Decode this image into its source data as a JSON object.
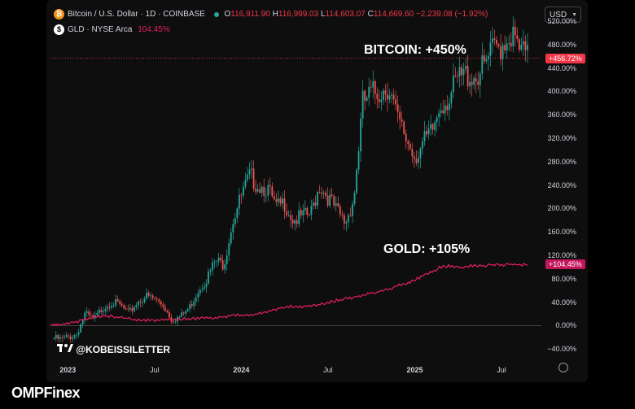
{
  "header": {
    "btc_title": "Bitcoin / U.S. Dollar · 1D · COINBASE",
    "ohlc": {
      "o_label": "O",
      "o_value": "116,911.90",
      "h_label": "H",
      "h_value": "116,999.03",
      "l_label": "L",
      "l_value": "114,603.07",
      "c_label": "C",
      "c_value": "114,669.60",
      "change": "−2,239.08 (−1.92%)"
    },
    "gld_title": "GLD · NYSE Arca",
    "gld_value": "104.45%",
    "currency": "USD"
  },
  "annotations": {
    "bitcoin": "BITCOIN: +450%",
    "gold": "GOLD: +105%"
  },
  "price_tags": {
    "btc": "+456.72%",
    "gld": "+104.45%"
  },
  "watermark": "@KOBEISSILETTER",
  "brand": "OMPFinex",
  "colors": {
    "up": "#26a69a",
    "down": "#ef5350",
    "gold_line": "#e91e63",
    "btc_tag": "#f23645",
    "gld_tag": "#c2185b",
    "background": "#0e0e0f"
  },
  "icons": [
    "bitcoin-icon",
    "gld-icon",
    "settings-icon",
    "tradingview-logo-icon"
  ],
  "chart_data": {
    "type": "line",
    "y_unit": "percent change",
    "y_ticks": [
      "520.00%",
      "480.00%",
      "440.00%",
      "400.00%",
      "360.00%",
      "320.00%",
      "280.00%",
      "240.00%",
      "200.00%",
      "160.00%",
      "120.00%",
      "80.00%",
      "40.00%",
      "0.00%",
      "−40.00%"
    ],
    "y_tick_values": [
      520,
      480,
      440,
      400,
      360,
      320,
      280,
      240,
      200,
      160,
      120,
      80,
      40,
      0,
      -40
    ],
    "ylim": [
      -55,
      545
    ],
    "x_ticks": [
      {
        "label": "2023",
        "t": 0.0,
        "bold": true
      },
      {
        "label": "Jul",
        "t": 0.5,
        "bold": false
      },
      {
        "label": "2024",
        "t": 1.0,
        "bold": true
      },
      {
        "label": "Jul",
        "t": 1.5,
        "bold": false
      },
      {
        "label": "2025",
        "t": 2.0,
        "bold": true
      },
      {
        "label": "Jul",
        "t": 2.5,
        "bold": false
      }
    ],
    "xlim": [
      -0.1,
      2.73
    ],
    "series": [
      {
        "name": "Bitcoin / U.S. Dollar",
        "style": "candles",
        "t": [
          -0.08,
          -0.04,
          0.0,
          0.05,
          0.1,
          0.15,
          0.2,
          0.25,
          0.3,
          0.35,
          0.4,
          0.45,
          0.5,
          0.55,
          0.6,
          0.65,
          0.7,
          0.75,
          0.8,
          0.85,
          0.9,
          0.95,
          1.0,
          1.05,
          1.1,
          1.15,
          1.2,
          1.25,
          1.3,
          1.35,
          1.4,
          1.45,
          1.5,
          1.55,
          1.6,
          1.65,
          1.7,
          1.75,
          1.8,
          1.85,
          1.9,
          1.95,
          2.0,
          2.05,
          2.1,
          2.15,
          2.2,
          2.25,
          2.3,
          2.35,
          2.4,
          2.45,
          2.5,
          2.55,
          2.6,
          2.65
        ],
        "values": [
          -22,
          -24,
          -20,
          -15,
          20,
          10,
          30,
          40,
          35,
          20,
          40,
          50,
          45,
          35,
          10,
          15,
          30,
          60,
          80,
          110,
          105,
          180,
          220,
          255,
          240,
          235,
          200,
          210,
          180,
          185,
          190,
          240,
          220,
          195,
          175,
          220,
          380,
          395,
          400,
          410,
          350,
          320,
          290,
          310,
          330,
          380,
          390,
          420,
          430,
          425,
          440,
          470,
          480,
          500,
          470,
          456.72
        ]
      },
      {
        "name": "GLD",
        "style": "line",
        "t": [
          -0.1,
          0.0,
          0.05,
          0.1,
          0.15,
          0.2,
          0.25,
          0.3,
          0.35,
          0.4,
          0.45,
          0.5,
          0.55,
          0.6,
          0.65,
          0.7,
          0.75,
          0.8,
          0.85,
          0.9,
          0.95,
          1.0,
          1.05,
          1.1,
          1.15,
          1.2,
          1.25,
          1.3,
          1.35,
          1.4,
          1.45,
          1.5,
          1.55,
          1.6,
          1.65,
          1.7,
          1.75,
          1.8,
          1.85,
          1.9,
          1.95,
          2.0,
          2.05,
          2.1,
          2.15,
          2.2,
          2.25,
          2.3,
          2.35,
          2.4,
          2.45,
          2.5,
          2.55,
          2.6,
          2.65
        ],
        "values": [
          2,
          3,
          6,
          10,
          14,
          17,
          16,
          14,
          12,
          10,
          9,
          8,
          9,
          10,
          11,
          12,
          12,
          13,
          14,
          15,
          17,
          18,
          19,
          20,
          24,
          28,
          32,
          33,
          32,
          34,
          36,
          40,
          43,
          46,
          48,
          52,
          56,
          58,
          62,
          68,
          72,
          78,
          85,
          92,
          100,
          102,
          99,
          101,
          103,
          102,
          104,
          103,
          105,
          104,
          104.45
        ]
      }
    ],
    "reference_lines": [
      {
        "y": 456.72,
        "style": "dotted",
        "color": "#f23645"
      },
      {
        "y": 0,
        "style": "solid",
        "color": "#555"
      }
    ],
    "grid": false
  }
}
